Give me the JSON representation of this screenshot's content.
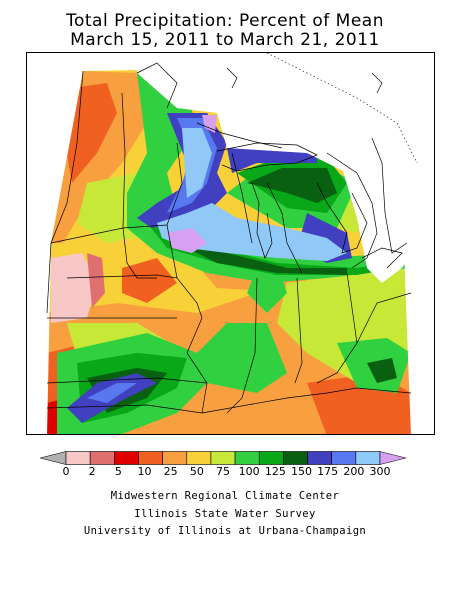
{
  "title": {
    "line1": "Total Precipitation: Percent of Mean",
    "line2": "March 15, 2011 to March 21, 2011"
  },
  "legend": {
    "ticks": [
      "0",
      "2",
      "5",
      "10",
      "25",
      "50",
      "75",
      "100",
      "125",
      "150",
      "175",
      "200",
      "300"
    ],
    "colors": [
      "#b0b0b0",
      "#f8c8c8",
      "#e07070",
      "#e00000",
      "#f06020",
      "#f8a040",
      "#f8d038",
      "#c8e838",
      "#30d040",
      "#08a818",
      "#086010",
      "#4040c0",
      "#5878f0",
      "#90c8f8",
      "#d8a0f0"
    ]
  },
  "credits": {
    "line1": "Midwestern Regional Climate Center",
    "line2": "Illinois State Water Survey",
    "line3": "University of Illinois at Urbana-Champaign"
  }
}
